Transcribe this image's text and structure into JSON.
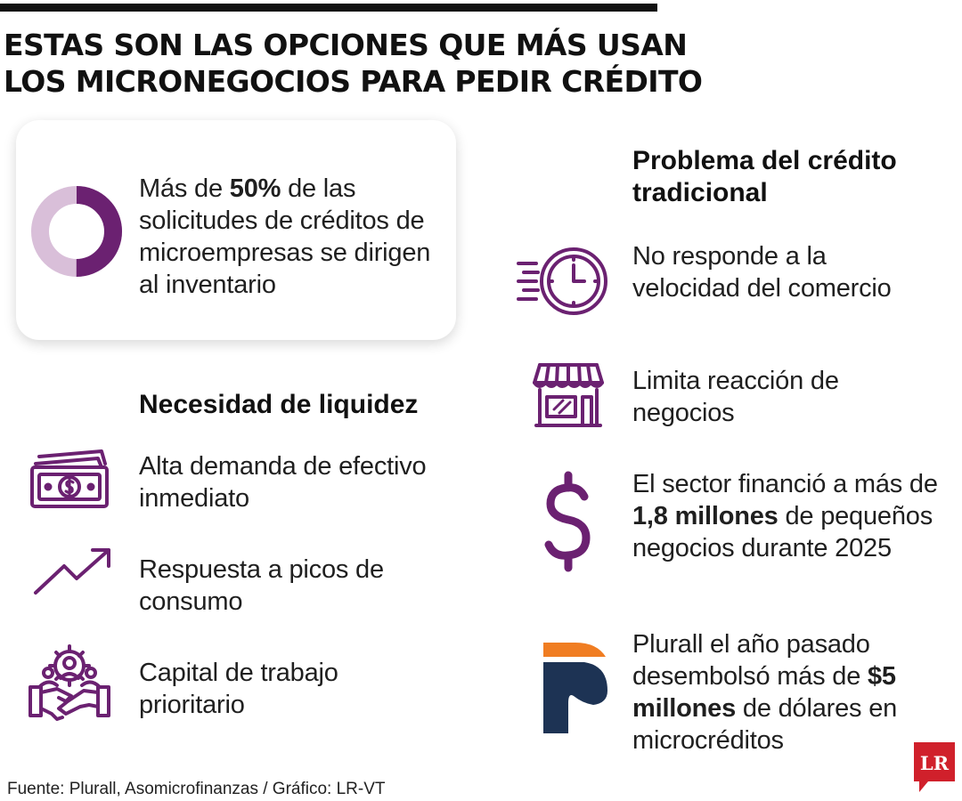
{
  "headline": {
    "line1": "ESTAS SON LAS OPCIONES QUE MÁS USAN",
    "line2": "LOS MICRONEGOCIOS PARA PEDIR CRÉDITO"
  },
  "highlight_card": {
    "pre": "Más de ",
    "bold": "50%",
    "post": " de las solicitudes de créditos de microempresas se dirigen al inventario",
    "donut_fraction": 0.5,
    "colors": {
      "filled": "#6b2171",
      "rest": "#d9bfd9"
    }
  },
  "liquidez": {
    "title": "Necesidad de liquidez",
    "items": [
      {
        "icon": "cash-icon",
        "text": "Alta demanda de efectivo inmediato"
      },
      {
        "icon": "trend-up-icon",
        "text": "Respuesta a picos de consumo"
      },
      {
        "icon": "teamwork-handshake-icon",
        "text": "Capital de trabajo prioritario"
      }
    ]
  },
  "problema": {
    "title": "Problema del crédito tradicional",
    "items": [
      {
        "icon": "fast-clock-icon",
        "text": "No responde a la velocidad del comercio"
      },
      {
        "icon": "storefront-icon",
        "text": "Limita reacción de negocios"
      },
      {
        "icon": "dollar-sign-icon",
        "pre": "El sector financió a más de ",
        "bold": "1,8 millones",
        "post": " de pequeños negocios durante 2025"
      },
      {
        "icon": "plurall-logo-icon",
        "pre": "Plurall el año pasado desembolsó más de ",
        "bold": "$5 millones",
        "post": " de dólares en microcréditos"
      }
    ]
  },
  "source": "Fuente: Plurall,  Asomicrofinanzas / Gráfico: LR-VT",
  "brand": {
    "logo_text": "LR",
    "accent": "#6b2171",
    "logo_red": "#d0202b"
  }
}
